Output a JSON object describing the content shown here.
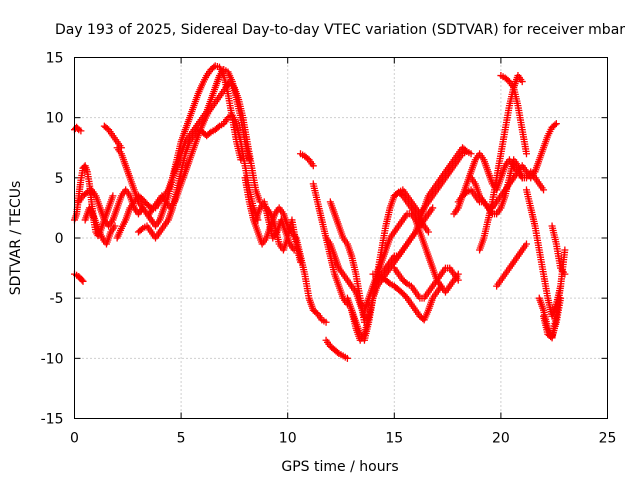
{
  "chart_data": {
    "type": "scatter",
    "title": "Day 193 of 2025, Sidereal Day-to-day VTEC variation (SDTVAR) for receiver mbar",
    "xlabel": "GPS time / hours",
    "ylabel": "SDTVAR / TECUs",
    "xlim": [
      0,
      25
    ],
    "ylim": [
      -15,
      15
    ],
    "xticks": [
      0,
      5,
      10,
      15,
      20,
      25
    ],
    "yticks": [
      -15,
      -10,
      -5,
      0,
      5,
      10,
      15
    ],
    "grid": true,
    "marker": "+",
    "color": "#ff0000",
    "series": [
      {
        "name": "s1",
        "x": [
          0.0,
          0.1,
          0.2,
          0.3
        ],
        "y": [
          9.0,
          9.2,
          9.0,
          8.9
        ]
      },
      {
        "name": "s2",
        "x": [
          0.0,
          0.1,
          0.2,
          0.3,
          0.4
        ],
        "y": [
          -3.0,
          -3.1,
          -3.2,
          -3.4,
          -3.6
        ]
      },
      {
        "name": "s3",
        "x": [
          0.0,
          0.1,
          0.2,
          0.3,
          0.4,
          0.5,
          0.6,
          0.7,
          0.8,
          0.9,
          1.0,
          1.1,
          1.2,
          1.3,
          1.4,
          1.5,
          1.6,
          1.7,
          1.8
        ],
        "y": [
          1.5,
          2.0,
          3.5,
          4.8,
          5.8,
          6.0,
          5.5,
          4.5,
          3.0,
          1.5,
          0.5,
          0.2,
          0.5,
          1.0,
          1.5,
          2.0,
          2.5,
          3.0,
          3.5
        ]
      },
      {
        "name": "s4",
        "x": [
          0.2,
          0.4,
          0.6,
          0.8,
          1.0,
          1.2,
          1.4,
          1.6,
          1.8,
          2.0,
          2.2,
          2.4,
          2.6,
          2.8,
          3.0,
          3.2
        ],
        "y": [
          3.0,
          3.5,
          3.8,
          4.0,
          3.5,
          2.5,
          1.5,
          1.0,
          1.5,
          2.5,
          3.5,
          4.0,
          3.5,
          2.5,
          2.0,
          2.5
        ]
      },
      {
        "name": "s5",
        "x": [
          0.5,
          0.7,
          0.9,
          1.1,
          1.3,
          1.5,
          1.7,
          1.9
        ],
        "y": [
          1.5,
          2.5,
          1.8,
          0.8,
          0.0,
          -0.5,
          0.5,
          1.0
        ]
      },
      {
        "name": "s6",
        "x": [
          1.4,
          1.6,
          1.8,
          2.0,
          2.2
        ],
        "y": [
          9.3,
          9.0,
          8.5,
          8.0,
          7.5
        ]
      },
      {
        "name": "s7",
        "x": [
          2.0,
          2.2,
          2.4,
          2.6,
          2.8,
          3.0,
          3.2,
          3.4,
          3.6,
          3.8,
          4.0,
          4.2,
          4.4,
          4.6,
          4.8,
          5.0,
          5.2,
          5.4,
          5.6,
          5.8,
          6.0,
          6.2,
          6.4,
          6.6,
          6.8,
          7.0,
          7.2,
          7.4,
          7.6,
          7.8
        ],
        "y": [
          7.5,
          7.0,
          6.0,
          5.0,
          4.0,
          3.0,
          2.5,
          2.0,
          1.5,
          1.0,
          1.5,
          2.5,
          3.5,
          5.0,
          6.5,
          8.0,
          9.0,
          10.0,
          11.0,
          12.0,
          12.8,
          13.5,
          14.0,
          14.3,
          14.2,
          13.5,
          12.0,
          10.0,
          8.0,
          6.5
        ]
      },
      {
        "name": "s8",
        "x": [
          2.0,
          2.2,
          2.4,
          2.6,
          2.8,
          3.0,
          3.2,
          3.4,
          3.6,
          3.8,
          4.0,
          4.2,
          4.4,
          4.6,
          4.8,
          5.0,
          5.2,
          5.4,
          5.6,
          5.8,
          6.0,
          6.2,
          6.4,
          6.6,
          6.8,
          7.0,
          7.2,
          7.4,
          7.6,
          7.8,
          8.0,
          8.2
        ],
        "y": [
          0.0,
          0.8,
          1.5,
          2.5,
          3.0,
          3.5,
          3.2,
          2.8,
          2.5,
          2.5,
          3.0,
          3.5,
          4.0,
          5.0,
          6.0,
          7.0,
          8.0,
          8.5,
          9.0,
          9.5,
          10.0,
          10.5,
          11.5,
          12.5,
          13.5,
          14.0,
          13.8,
          13.0,
          11.5,
          10.0,
          8.0,
          6.5
        ]
      },
      {
        "name": "s9",
        "x": [
          3.0,
          3.2,
          3.4,
          3.6,
          3.8,
          4.0,
          4.2,
          4.4,
          4.6,
          4.8,
          5.0,
          5.2,
          5.4,
          5.6,
          5.8,
          6.0,
          6.2,
          6.4,
          6.6,
          6.8,
          7.0,
          7.2,
          7.4,
          7.6,
          7.8,
          8.0,
          8.2,
          8.4,
          8.6
        ],
        "y": [
          0.5,
          0.8,
          1.0,
          0.5,
          0.0,
          0.5,
          1.0,
          1.5,
          2.5,
          4.0,
          5.5,
          7.0,
          8.0,
          8.5,
          9.0,
          8.8,
          8.5,
          8.8,
          9.0,
          9.3,
          9.5,
          10.0,
          10.2,
          9.5,
          8.0,
          6.0,
          4.0,
          2.5,
          1.5
        ]
      },
      {
        "name": "s10",
        "x": [
          3.5,
          3.7,
          3.9,
          4.1,
          4.3,
          4.5,
          4.7,
          4.9,
          5.1,
          5.3,
          5.5,
          5.7,
          5.9,
          6.1,
          6.3,
          6.5,
          6.7,
          6.9,
          7.1,
          7.3,
          7.5,
          7.7,
          7.9,
          8.1,
          8.3,
          8.5,
          8.7
        ],
        "y": [
          2.0,
          2.5,
          3.0,
          3.5,
          3.0,
          2.5,
          3.0,
          4.0,
          5.0,
          6.0,
          7.0,
          8.0,
          9.0,
          9.8,
          10.5,
          11.0,
          11.5,
          12.0,
          12.5,
          13.0,
          12.5,
          11.5,
          10.0,
          8.0,
          6.0,
          4.0,
          3.0
        ]
      },
      {
        "name": "s11",
        "x": [
          8.0,
          8.2,
          8.4,
          8.6,
          8.8,
          9.0,
          9.2,
          9.4,
          9.6,
          9.8,
          10.0,
          10.2,
          10.4,
          10.6,
          10.8,
          11.0,
          11.2,
          11.4,
          11.6,
          11.8
        ],
        "y": [
          5.0,
          3.0,
          1.5,
          0.5,
          -0.5,
          0.0,
          1.0,
          2.0,
          2.5,
          2.0,
          1.0,
          0.5,
          0.0,
          -1.5,
          -3.0,
          -5.0,
          -6.0,
          -6.3,
          -6.8,
          -7.0
        ]
      },
      {
        "name": "s12",
        "x": [
          8.5,
          8.7,
          8.9,
          9.1,
          9.3,
          9.5,
          9.7,
          9.9,
          10.1,
          10.3
        ],
        "y": [
          1.5,
          2.5,
          3.0,
          1.5,
          0.0,
          0.5,
          1.5,
          0.5,
          -0.5,
          -1.0
        ]
      },
      {
        "name": "s13",
        "x": [
          9.0,
          9.2,
          9.4,
          9.6,
          9.8,
          10.0,
          10.2,
          10.4,
          10.6
        ],
        "y": [
          2.5,
          2.0,
          1.0,
          -0.5,
          -1.0,
          0.0,
          1.5,
          -0.5,
          -2.0
        ]
      },
      {
        "name": "s14",
        "x": [
          10.6,
          10.8,
          11.0,
          11.2
        ],
        "y": [
          7.0,
          6.8,
          6.5,
          6.0
        ]
      },
      {
        "name": "s15",
        "x": [
          11.2,
          11.4,
          11.6,
          11.8,
          12.0,
          12.2,
          12.4,
          12.6,
          12.8
        ],
        "y": [
          4.5,
          3.0,
          1.5,
          0.0,
          -1.5,
          -3.0,
          -4.0,
          -5.0,
          -5.5
        ]
      },
      {
        "name": "s16",
        "x": [
          12.0,
          12.2,
          12.4,
          12.6,
          12.8,
          13.0,
          13.2,
          13.4,
          13.6
        ],
        "y": [
          3.0,
          2.0,
          1.0,
          0.0,
          -0.5,
          -1.5,
          -3.0,
          -5.0,
          -7.0
        ]
      },
      {
        "name": "s17",
        "x": [
          11.8,
          12.0,
          12.2,
          12.4,
          12.6,
          12.8,
          13.0,
          13.2,
          13.4,
          13.6
        ],
        "y": [
          0.0,
          -0.5,
          -1.5,
          -2.5,
          -3.0,
          -3.5,
          -4.0,
          -4.5,
          -5.5,
          -6.5
        ]
      },
      {
        "name": "s18",
        "x": [
          11.8,
          12.0,
          12.2,
          12.4,
          12.6,
          12.8
        ],
        "y": [
          -8.5,
          -9.0,
          -9.3,
          -9.6,
          -9.8,
          -10.0
        ]
      },
      {
        "name": "s19",
        "x": [
          12.8,
          13.0,
          13.2,
          13.4,
          13.6,
          13.8,
          14.0,
          14.2,
          14.4,
          14.6,
          14.8,
          15.0,
          15.2,
          15.4,
          15.6,
          15.8,
          16.0,
          16.2,
          16.4,
          16.6
        ],
        "y": [
          -5.0,
          -6.0,
          -7.0,
          -8.0,
          -8.5,
          -7.0,
          -5.0,
          -3.0,
          -1.0,
          1.0,
          2.5,
          3.5,
          3.8,
          3.5,
          3.0,
          2.5,
          2.0,
          1.5,
          1.0,
          0.5
        ]
      },
      {
        "name": "s20",
        "x": [
          13.0,
          13.2,
          13.4,
          13.6,
          13.8,
          14.0,
          14.2,
          14.4,
          14.6,
          14.8,
          15.0,
          15.2,
          15.4,
          15.6,
          15.8,
          16.0,
          16.2,
          16.4,
          16.6,
          16.8
        ],
        "y": [
          -6.0,
          -7.5,
          -8.5,
          -8.0,
          -6.5,
          -5.0,
          -4.0,
          -3.5,
          -3.0,
          -2.5,
          -2.0,
          -1.5,
          -1.0,
          -0.5,
          0.0,
          0.5,
          1.0,
          1.5,
          2.0,
          2.5
        ]
      },
      {
        "name": "s21",
        "x": [
          13.6,
          13.8,
          14.0,
          14.2,
          14.4,
          14.6,
          14.8,
          15.0,
          15.2,
          15.4,
          15.6,
          15.8,
          16.0,
          16.2,
          16.4,
          16.6,
          16.8,
          17.0,
          17.2,
          17.4,
          17.6,
          17.8,
          18.0
        ],
        "y": [
          -6.0,
          -5.0,
          -4.0,
          -3.0,
          -2.0,
          -1.0,
          0.0,
          0.5,
          1.0,
          1.5,
          2.0,
          2.0,
          1.5,
          0.5,
          -0.5,
          -1.5,
          -2.5,
          -3.5,
          -4.0,
          -4.5,
          -4.0,
          -3.5,
          -3.0
        ]
      },
      {
        "name": "s22",
        "x": [
          14.0,
          14.2,
          14.4,
          14.6,
          14.8,
          15.0,
          15.2,
          15.4,
          15.6,
          15.8,
          16.0,
          16.2,
          16.4,
          16.6,
          16.8,
          17.0,
          17.2
        ],
        "y": [
          -3.0,
          -3.0,
          -3.2,
          -3.5,
          -3.8,
          -4.0,
          -4.3,
          -4.6,
          -5.0,
          -5.5,
          -6.0,
          -6.5,
          -6.8,
          -6.0,
          -5.0,
          -4.5,
          -4.0
        ]
      },
      {
        "name": "s23",
        "x": [
          14.0,
          14.2,
          14.4,
          14.6,
          14.8,
          15.0,
          15.2,
          15.4,
          15.6,
          15.8,
          16.0,
          16.2,
          16.4,
          16.6,
          16.8,
          17.0,
          17.2,
          17.4,
          17.6,
          17.8,
          18.0,
          18.2,
          18.4,
          18.6
        ],
        "y": [
          -4.0,
          -3.5,
          -3.0,
          -2.5,
          -2.0,
          -1.5,
          -1.5,
          -1.0,
          -0.5,
          0.0,
          0.5,
          1.5,
          2.5,
          3.5,
          4.0,
          4.5,
          5.0,
          5.5,
          6.0,
          6.5,
          7.0,
          7.5,
          7.2,
          7.0
        ]
      },
      {
        "name": "s24",
        "x": [
          15.0,
          15.2,
          15.4,
          15.6,
          15.8,
          16.0,
          16.2,
          16.4,
          16.6,
          16.8,
          17.0,
          17.2,
          17.4,
          17.6,
          17.8,
          18.0
        ],
        "y": [
          -2.5,
          -3.0,
          -3.5,
          -3.8,
          -4.0,
          -4.5,
          -5.0,
          -5.0,
          -4.5,
          -4.0,
          -3.5,
          -3.0,
          -2.5,
          -2.5,
          -3.0,
          -3.5
        ]
      },
      {
        "name": "s25",
        "x": [
          15.0,
          15.2,
          15.4,
          15.6,
          15.8,
          16.0,
          16.2,
          16.4,
          16.6,
          16.8,
          17.0,
          17.2,
          17.4,
          17.6,
          17.8,
          18.0,
          18.2,
          18.4
        ],
        "y": [
          3.5,
          3.8,
          4.0,
          3.5,
          3.0,
          2.5,
          2.0,
          2.5,
          3.0,
          3.5,
          4.0,
          4.5,
          5.0,
          5.5,
          6.0,
          6.5,
          7.0,
          7.2
        ]
      },
      {
        "name": "s26",
        "x": [
          17.8,
          18.0,
          18.2,
          18.4,
          18.6,
          18.8,
          19.0,
          19.2,
          19.4,
          19.6,
          19.8,
          20.0,
          20.2,
          20.4,
          20.6,
          20.8,
          21.0,
          21.2,
          21.4,
          21.6,
          21.8,
          22.0
        ],
        "y": [
          2.0,
          2.5,
          3.5,
          4.5,
          5.5,
          6.5,
          7.0,
          6.5,
          5.5,
          4.5,
          4.0,
          5.0,
          6.0,
          6.5,
          6.0,
          5.5,
          5.0,
          5.0,
          5.5,
          5.0,
          4.5,
          4.0
        ]
      },
      {
        "name": "s27",
        "x": [
          18.0,
          18.2,
          18.4,
          18.6,
          18.8,
          19.0,
          19.2,
          19.4,
          19.6,
          19.8,
          20.0,
          20.2,
          20.4,
          20.6,
          20.8,
          21.0,
          21.2,
          21.4,
          21.6,
          21.8,
          22.0,
          22.2,
          22.4,
          22.6
        ],
        "y": [
          3.0,
          3.5,
          3.8,
          4.0,
          3.5,
          3.0,
          3.0,
          2.5,
          2.5,
          3.0,
          3.5,
          4.0,
          4.5,
          5.0,
          5.5,
          6.0,
          5.5,
          5.0,
          5.5,
          6.5,
          7.5,
          8.5,
          9.2,
          9.5
        ]
      },
      {
        "name": "s28",
        "x": [
          18.6,
          18.8,
          19.0,
          19.2,
          19.4,
          19.6,
          19.8,
          20.0,
          20.2,
          20.4,
          20.6,
          20.8,
          21.0
        ],
        "y": [
          5.0,
          4.5,
          3.5,
          3.0,
          2.5,
          2.0,
          2.0,
          2.5,
          3.5,
          5.0,
          6.5,
          6.0,
          5.0
        ]
      },
      {
        "name": "s29",
        "x": [
          19.0,
          19.2,
          19.4,
          19.6,
          19.8,
          20.0,
          20.2,
          20.4,
          20.6,
          20.8,
          21.0
        ],
        "y": [
          -1.0,
          0.0,
          1.5,
          3.0,
          5.0,
          7.0,
          9.0,
          11.0,
          12.5,
          13.5,
          13.0
        ]
      },
      {
        "name": "s30",
        "x": [
          19.8,
          20.0,
          20.2,
          20.4,
          20.6,
          20.8,
          21.0,
          21.2
        ],
        "y": [
          -4.0,
          -3.5,
          -3.0,
          -2.5,
          -2.0,
          -1.5,
          -1.0,
          -0.5
        ]
      },
      {
        "name": "s31",
        "x": [
          20.0,
          20.2,
          20.4,
          20.6,
          20.8,
          21.0,
          21.2
        ],
        "y": [
          13.5,
          13.3,
          13.0,
          12.5,
          11.0,
          9.0,
          7.0
        ]
      },
      {
        "name": "s32",
        "x": [
          21.2,
          21.4,
          21.6,
          21.8,
          22.0,
          22.2,
          22.4,
          22.6,
          22.8
        ],
        "y": [
          4.0,
          2.5,
          1.0,
          -1.0,
          -3.0,
          -5.0,
          -6.5,
          -5.5,
          -4.0
        ]
      },
      {
        "name": "s33",
        "x": [
          21.8,
          22.0,
          22.2,
          22.4,
          22.6,
          22.8
        ],
        "y": [
          -5.0,
          -6.0,
          -7.5,
          -8.2,
          -7.0,
          -5.0
        ]
      },
      {
        "name": "s34",
        "x": [
          22.0,
          22.2,
          22.4,
          22.6,
          22.8,
          23.0
        ],
        "y": [
          -6.5,
          -8.0,
          -8.3,
          -6.5,
          -4.0,
          -1.0
        ]
      },
      {
        "name": "s35",
        "x": [
          22.4,
          22.6,
          22.8,
          23.0
        ],
        "y": [
          1.0,
          -0.5,
          -2.5,
          -3.0
        ]
      }
    ]
  }
}
